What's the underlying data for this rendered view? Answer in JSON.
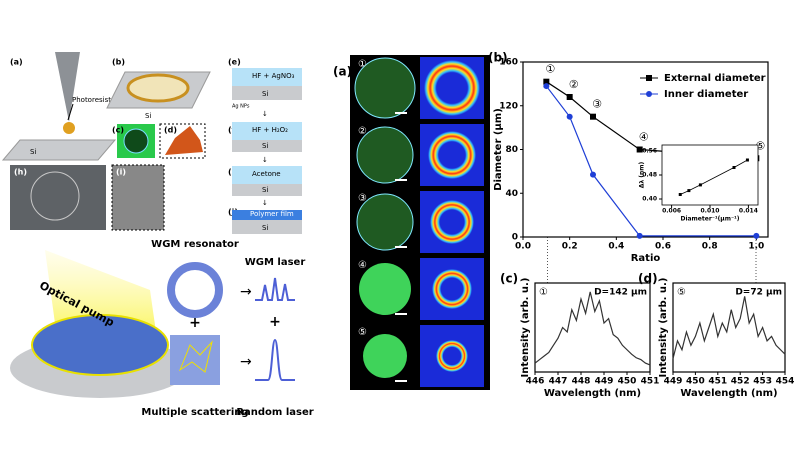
{
  "figure": {
    "left": {
      "a": "(a)",
      "photoresist": "Photoresist",
      "si_a": "Si",
      "b": "(b)",
      "si_b": "Si",
      "c": "(c)",
      "d": "(d)",
      "e": "(e)",
      "hf_agno3": "HF + AgNO₃",
      "ag_nps": "Ag NPs",
      "si_e": "Si",
      "f": "(f)",
      "hf_h2o2": "HF + H₂O₂",
      "si_f": "Si",
      "g": "(g)",
      "acetone": "Acetone",
      "si_g": "Si",
      "j": "(j)",
      "polymer": "Polymer film",
      "si_j": "Si",
      "h": "(h)",
      "i": "(i)"
    },
    "concept": {
      "pump": "Optical pump",
      "resonator": "WGM resonator",
      "wgm_laser": "WGM laser",
      "scattering": "Multiple scattering",
      "random_laser": "Random laser",
      "plus": "+"
    },
    "images": {
      "panel_label": "(a)",
      "numbers": [
        "①",
        "②",
        "③",
        "④",
        "⑤"
      ]
    }
  },
  "chart_data": [
    {
      "type": "line",
      "panel_label": "(b)",
      "x_label": "Ratio",
      "y_label": "Diameter (μm)",
      "x": [
        0.1,
        0.2,
        0.3,
        0.5,
        1.0
      ],
      "series": [
        {
          "name": "External diameter",
          "color": "#000000",
          "marker": "square",
          "values": [
            142,
            128,
            110,
            80,
            72
          ]
        },
        {
          "name": "Inner diameter",
          "color": "#1f3fd6",
          "marker": "circle",
          "values": [
            138,
            110,
            57,
            1,
            1
          ]
        }
      ],
      "point_labels": [
        "①",
        "②",
        "③",
        "④",
        "⑤"
      ],
      "xlim": [
        0,
        1.05
      ],
      "xticks": [
        {
          "value": 0,
          "label": "0.0"
        },
        0.2,
        0.4,
        0.6,
        0.8,
        {
          "value": 1,
          "label": "1.0"
        }
      ],
      "ylim": [
        0,
        160
      ],
      "yticks": [
        0,
        40,
        80,
        120,
        160
      ],
      "legend": "upper right"
    },
    {
      "type": "line",
      "x_label": "Diameter⁻¹(μm⁻¹)",
      "y_label": "Δλ (nm)",
      "x": [
        0.0069,
        0.0078,
        0.009,
        0.0125,
        0.0139
      ],
      "values": [
        0.415,
        0.428,
        0.447,
        0.505,
        0.53
      ],
      "color": "#000000",
      "marker": "square",
      "xlim": [
        0.005,
        0.015
      ],
      "xticks": [
        0.006,
        {
          "value": 0.01,
          "label": "0.010"
        },
        0.014
      ],
      "ylim": [
        0.38,
        0.58
      ],
      "yticks": [
        {
          "value": 0.4,
          "label": "0.40"
        },
        {
          "value": 0.48,
          "label": "0.48"
        },
        {
          "value": 0.56,
          "label": "0.56"
        }
      ]
    },
    {
      "type": "line",
      "panel_label": "(c)",
      "marker_label": "①",
      "annotation": "D=142 μm",
      "x_label": "Wavelength (nm)",
      "y_label": "Intensity (arb. u.)",
      "x": [
        446.0,
        446.2,
        446.4,
        446.6,
        446.8,
        447.0,
        447.2,
        447.4,
        447.6,
        447.8,
        448.0,
        448.2,
        448.4,
        448.6,
        448.8,
        449.0,
        449.2,
        449.4,
        449.6,
        449.8,
        450.0,
        450.2,
        450.4,
        450.6,
        450.8,
        451.0
      ],
      "values": [
        0.1,
        0.14,
        0.18,
        0.22,
        0.3,
        0.38,
        0.5,
        0.45,
        0.7,
        0.58,
        0.82,
        0.66,
        0.9,
        0.68,
        0.8,
        0.55,
        0.6,
        0.42,
        0.38,
        0.3,
        0.25,
        0.2,
        0.16,
        0.14,
        0.1,
        0.08
      ],
      "color": "#333333",
      "xlim": [
        446,
        451
      ],
      "xticks": [
        446,
        447,
        448,
        449,
        450,
        451
      ],
      "ylim": [
        0,
        1
      ]
    },
    {
      "type": "line",
      "panel_label": "(d)",
      "marker_label": "⑤",
      "annotation": "D=72 μm",
      "x_label": "Wavelength (nm)",
      "y_label": "Intensity (arb. u.)",
      "x": [
        449.0,
        449.2,
        449.4,
        449.6,
        449.8,
        450.0,
        450.2,
        450.4,
        450.6,
        450.8,
        451.0,
        451.2,
        451.4,
        451.6,
        451.8,
        452.0,
        452.2,
        452.4,
        452.6,
        452.8,
        453.0,
        453.2,
        453.4,
        453.6,
        453.8,
        454.0
      ],
      "values": [
        0.15,
        0.35,
        0.25,
        0.45,
        0.3,
        0.4,
        0.55,
        0.35,
        0.5,
        0.65,
        0.4,
        0.55,
        0.45,
        0.7,
        0.5,
        0.6,
        0.85,
        0.55,
        0.65,
        0.4,
        0.5,
        0.35,
        0.4,
        0.3,
        0.25,
        0.2
      ],
      "color": "#333333",
      "xlim": [
        449,
        454
      ],
      "xticks": [
        449,
        450,
        451,
        452,
        453,
        454
      ],
      "ylim": [
        0,
        1
      ]
    }
  ]
}
